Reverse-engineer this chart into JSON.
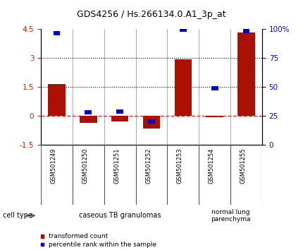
{
  "title": "GDS4256 / Hs.266134.0.A1_3p_at",
  "samples": [
    "GSM501249",
    "GSM501250",
    "GSM501251",
    "GSM501252",
    "GSM501253",
    "GSM501254",
    "GSM501255"
  ],
  "transformed_count": [
    1.65,
    -0.35,
    -0.3,
    -0.65,
    2.93,
    -0.05,
    4.3
  ],
  "percentile_rank": [
    96,
    28,
    29,
    20,
    99,
    49,
    98
  ],
  "ylim_left": [
    -1.5,
    4.5
  ],
  "ylim_right": [
    0,
    100
  ],
  "yticks_left": [
    -1.5,
    0,
    1.5,
    3,
    4.5
  ],
  "yticks_left_labels": [
    "-1.5",
    "0",
    "1.5",
    "3",
    "4.5"
  ],
  "yticks_right": [
    0,
    25,
    50,
    75,
    100
  ],
  "yticks_right_labels": [
    "0",
    "25",
    "50",
    "75",
    "100%"
  ],
  "hline_dotted": [
    1.5,
    3.0
  ],
  "hline_dashed_color": "#cc3333",
  "hline_dotted_color": "#000000",
  "bar_color": "#aa1100",
  "dot_color": "#0000cc",
  "groups": [
    {
      "label": "caseous TB granulomas",
      "n_samples": 5,
      "color": "#cceecc",
      "border": "#88bb88"
    },
    {
      "label": "normal lung\nparenchyma",
      "n_samples": 2,
      "color": "#88cc88",
      "border": "#44aa44"
    }
  ],
  "cell_type_label": "cell type",
  "legend_items": [
    {
      "color": "#aa1100",
      "label": "transformed count"
    },
    {
      "color": "#0000cc",
      "label": "percentile rank within the sample"
    }
  ],
  "bg_color": "#ffffff",
  "plot_bg": "#ffffff",
  "sample_label_bg": "#cccccc",
  "title_fontsize": 9,
  "tick_fontsize": 7.5,
  "sample_fontsize": 6,
  "group_fontsize": 7,
  "legend_fontsize": 6.5
}
